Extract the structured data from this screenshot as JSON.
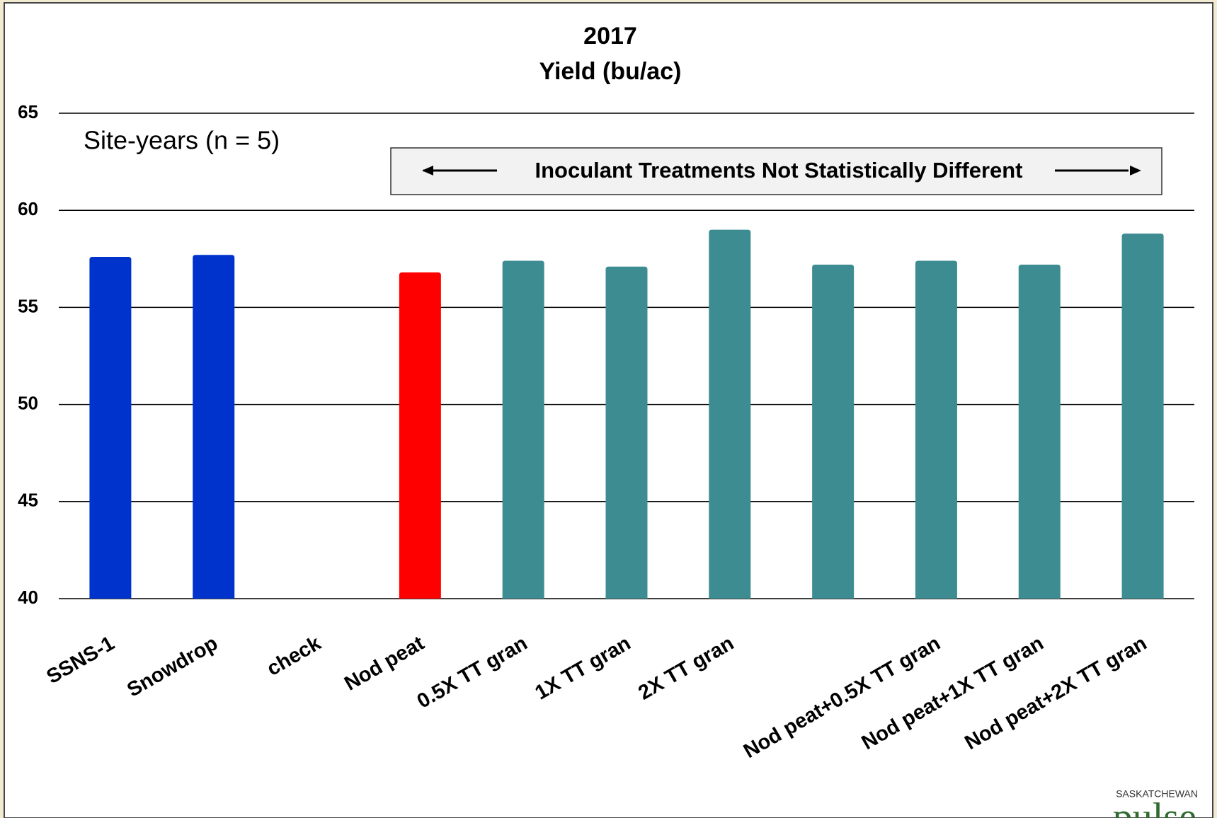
{
  "chart_data": {
    "type": "bar",
    "title": "2017",
    "subtitle": "Yield (bu/ac)",
    "annotations": [
      "Site-years (n = 5)",
      "Inoculant Treatments Not Statistically Different"
    ],
    "categories": [
      "SSNS-1",
      "Snowdrop",
      "check",
      "Nod peat",
      "0.5X TT gran",
      "1X TT gran",
      "2X TT gran",
      null,
      "Nod peat+0.5X TT gran",
      "Nod peat+1X TT gran",
      "Nod peat+2X TT gran"
    ],
    "values": [
      57.6,
      57.7,
      null,
      56.8,
      57.4,
      57.1,
      59.0,
      57.2,
      57.4,
      57.2,
      58.8
    ],
    "colors": [
      "#0033cc",
      "#0033cc",
      "#3d8c91",
      "#ff0000",
      "#3d8c91",
      "#3d8c91",
      "#3d8c91",
      "#3d8c91",
      "#3d8c91",
      "#3d8c91",
      "#3d8c91"
    ],
    "ylim": [
      40,
      65
    ],
    "yticks": [
      40,
      45,
      50,
      55,
      60,
      65
    ],
    "grid": true,
    "logo": [
      "SASKATCHEWAN",
      "pulse"
    ]
  }
}
